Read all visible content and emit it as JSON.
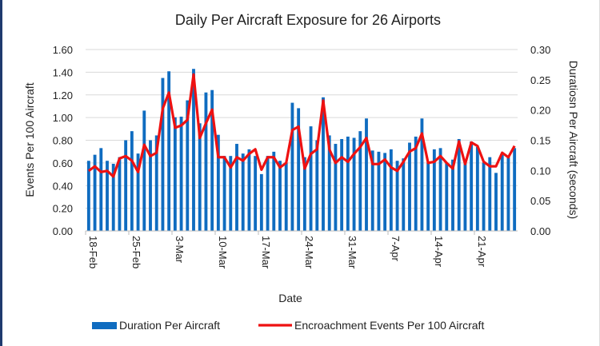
{
  "chart_data": {
    "type": "bar+line",
    "title": "Daily Per Aircraft Exposure for 26 Airports",
    "xlabel": "Date",
    "ylabel_left": "Events Per 100 Aircraft",
    "ylabel_right": "Duratiosn Per Aircraft (seconds)",
    "ylim_left": [
      0,
      1.6
    ],
    "ylim_right": [
      0,
      0.3
    ],
    "yticks_left": [
      "0.00",
      "0.20",
      "0.40",
      "0.60",
      "0.80",
      "1.00",
      "1.20",
      "1.40",
      "1.60"
    ],
    "yticks_right": [
      "0.00",
      "0.05",
      "0.10",
      "0.15",
      "0.20",
      "0.25",
      "0.30"
    ],
    "xtick_labels": [
      "18-Feb",
      "25-Feb",
      "3-Mar",
      "10-Mar",
      "17-Mar",
      "24-Mar",
      "31-Mar",
      "7-Apr",
      "14-Apr",
      "21-Apr"
    ],
    "xtick_every": 7,
    "grid": true,
    "legend_position": "bottom",
    "colors": {
      "bars": "#0f6cc0",
      "line": "#ee1111",
      "grid": "#d9d9d9"
    },
    "categories": [
      "18-Feb",
      "19-Feb",
      "20-Feb",
      "21-Feb",
      "22-Feb",
      "23-Feb",
      "24-Feb",
      "25-Feb",
      "26-Feb",
      "27-Feb",
      "28-Feb",
      "29-Feb",
      "1-Mar",
      "2-Mar",
      "3-Mar",
      "4-Mar",
      "5-Mar",
      "6-Mar",
      "7-Mar",
      "8-Mar",
      "9-Mar",
      "10-Mar",
      "11-Mar",
      "12-Mar",
      "13-Mar",
      "14-Mar",
      "15-Mar",
      "16-Mar",
      "17-Mar",
      "18-Mar",
      "19-Mar",
      "20-Mar",
      "21-Mar",
      "22-Mar",
      "23-Mar",
      "24-Mar",
      "25-Mar",
      "26-Mar",
      "27-Mar",
      "28-Mar",
      "29-Mar",
      "30-Mar",
      "31-Mar",
      "1-Apr",
      "2-Apr",
      "3-Apr",
      "4-Apr",
      "5-Apr",
      "6-Apr",
      "7-Apr",
      "8-Apr",
      "9-Apr",
      "10-Apr",
      "11-Apr",
      "12-Apr",
      "13-Apr",
      "14-Apr",
      "15-Apr",
      "16-Apr",
      "17-Apr",
      "18-Apr",
      "19-Apr",
      "20-Apr",
      "21-Apr",
      "22-Apr",
      "23-Apr",
      "24-Apr",
      "25-Apr",
      "26-Apr",
      "27-Apr"
    ],
    "series": [
      {
        "name": "Duration Per Aircraft",
        "type": "bar",
        "axis": "right",
        "values": [
          0.116,
          0.126,
          0.137,
          0.116,
          0.111,
          0.122,
          0.15,
          0.165,
          0.128,
          0.199,
          0.15,
          0.158,
          0.253,
          0.264,
          0.188,
          0.189,
          0.216,
          0.268,
          0.178,
          0.229,
          0.233,
          0.159,
          0.124,
          0.124,
          0.144,
          0.128,
          0.135,
          0.124,
          0.094,
          0.124,
          0.131,
          0.116,
          0.113,
          0.212,
          0.203,
          0.122,
          0.173,
          0.15,
          0.221,
          0.158,
          0.144,
          0.152,
          0.156,
          0.154,
          0.165,
          0.186,
          0.133,
          0.131,
          0.129,
          0.135,
          0.116,
          0.12,
          0.146,
          0.156,
          0.186,
          0.113,
          0.135,
          0.137,
          0.113,
          0.118,
          0.152,
          0.113,
          0.148,
          0.139,
          0.113,
          0.122,
          0.096,
          0.126,
          0.122,
          0.137
        ]
      },
      {
        "name": "Encroachment Events Per 100 Aircraft",
        "type": "line",
        "axis": "left",
        "values": [
          0.53,
          0.57,
          0.52,
          0.53,
          0.48,
          0.64,
          0.66,
          0.62,
          0.52,
          0.76,
          0.66,
          0.69,
          1.08,
          1.22,
          0.91,
          0.93,
          0.98,
          1.38,
          0.82,
          0.95,
          1.07,
          0.65,
          0.65,
          0.56,
          0.65,
          0.62,
          0.68,
          0.72,
          0.54,
          0.65,
          0.65,
          0.56,
          0.6,
          0.89,
          0.92,
          0.55,
          0.68,
          0.72,
          1.15,
          0.72,
          0.6,
          0.65,
          0.61,
          0.68,
          0.74,
          0.82,
          0.59,
          0.59,
          0.63,
          0.56,
          0.53,
          0.61,
          0.7,
          0.73,
          0.86,
          0.6,
          0.61,
          0.66,
          0.6,
          0.55,
          0.79,
          0.59,
          0.78,
          0.75,
          0.61,
          0.57,
          0.57,
          0.69,
          0.65,
          0.75
        ]
      }
    ]
  }
}
